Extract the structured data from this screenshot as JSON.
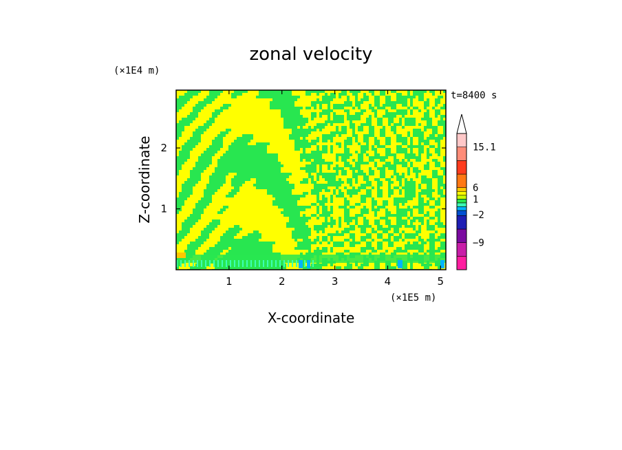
{
  "chart_data": {
    "type": "heatmap",
    "title": "zonal velocity",
    "xlabel": "X-coordinate",
    "ylabel": "Z-coordinate",
    "x_unit": "(×1E5 m)",
    "y_unit": "(×1E4 m)",
    "time_label": "t=8400 s",
    "xlim": [
      0,
      5.1
    ],
    "ylim": [
      0,
      2.95
    ],
    "x_ticks": [
      {
        "value": 1,
        "label": "1"
      },
      {
        "value": 2,
        "label": "2"
      },
      {
        "value": 3,
        "label": "3"
      },
      {
        "value": 4,
        "label": "4"
      },
      {
        "value": 5,
        "label": "5"
      }
    ],
    "y_ticks": [
      {
        "value": 1,
        "label": "1"
      },
      {
        "value": 2,
        "label": "2"
      }
    ],
    "colorbar": {
      "levels": [
        -15,
        -12,
        -9,
        -6,
        -3,
        -2,
        -1,
        0,
        1,
        2,
        3,
        6,
        9,
        12,
        15.1
      ],
      "colors": [
        "#ff1ea0",
        "#c81ea8",
        "#7a0aa0",
        "#1e1eb4",
        "#0050d2",
        "#00b4ff",
        "#3cffb4",
        "#28e650",
        "#c8ff00",
        "#ffff00",
        "#ffc800",
        "#ff7814",
        "#ff3c1e",
        "#ff8c78",
        "#ffc8c8"
      ],
      "labeled": [
        {
          "value": 15.1,
          "label": "15.1"
        },
        {
          "value": 6,
          "label": "6"
        },
        {
          "value": 1,
          "label": "1"
        },
        {
          "value": -2,
          "label": "−2"
        },
        {
          "value": -9,
          "label": "−9"
        }
      ],
      "extend": "max"
    },
    "field_description_values": {
      "dominant_positive": 1.5,
      "dominant_negative": -0.5
    }
  }
}
